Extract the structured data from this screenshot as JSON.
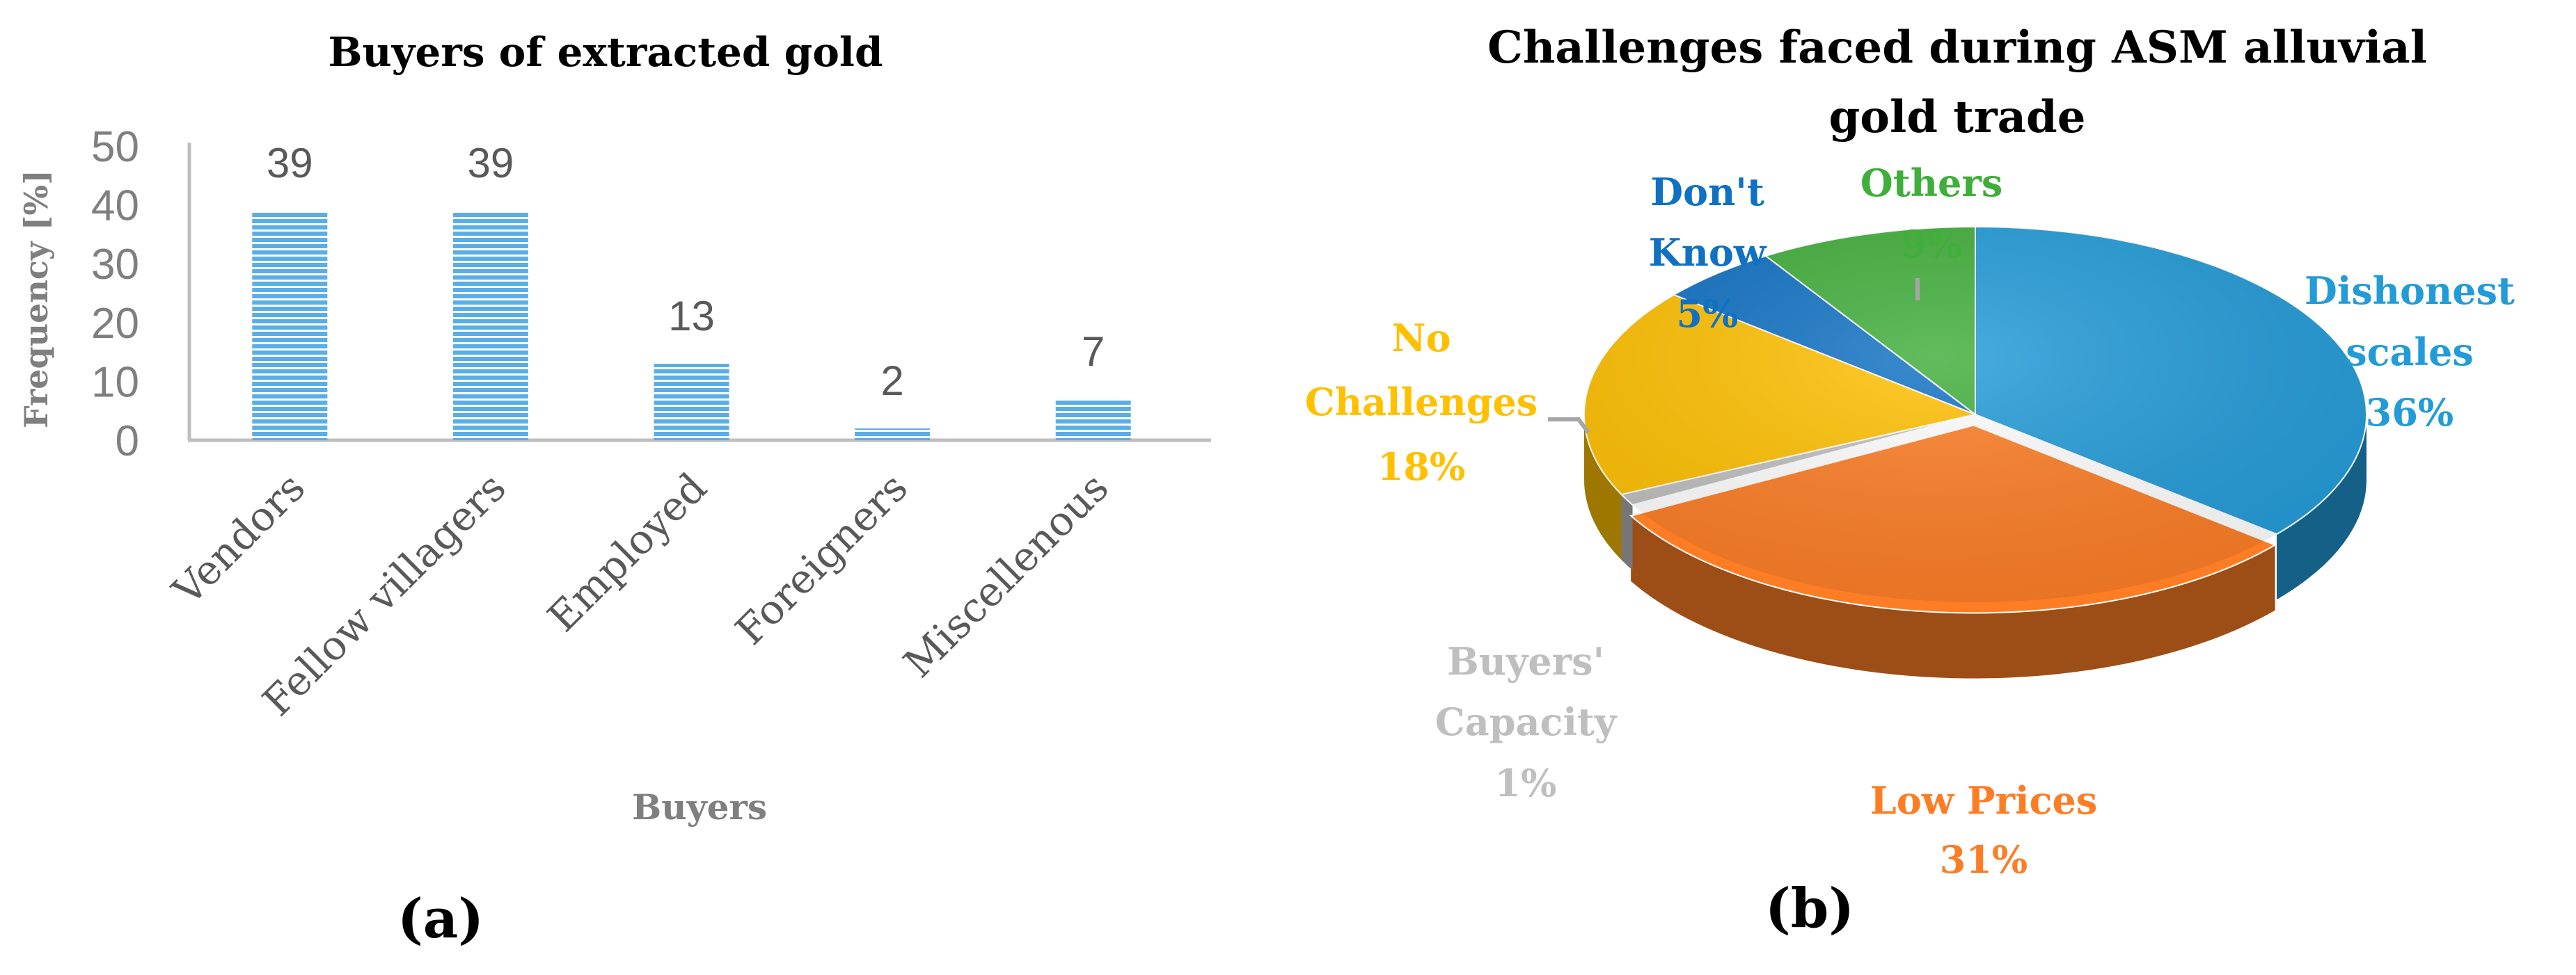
{
  "colors": {
    "bar": "#5aaee6",
    "bar_stripe": "#ffffff",
    "axis": "#bfbfbf",
    "text_gray": "#7f7f7f",
    "pie_blue": "#229bd8",
    "pie_orange": "#fd7d25",
    "pie_yellow": "#ffc000",
    "pie_darkblue": "#1071c3",
    "pie_green": "#40ae3a",
    "pie_lightgray": "#bfbfbf"
  },
  "chart_data": [
    {
      "type": "bar",
      "title": "Buyers of extracted gold",
      "xlabel": "Buyers",
      "ylabel": "Frequency [%]",
      "ylim": [
        0,
        50
      ],
      "yticks": [
        "0",
        "10",
        "20",
        "30",
        "40",
        "50"
      ],
      "categories": [
        "Vendors",
        "Fellow villagers",
        "Employed",
        "Foreigners",
        "Miscellenous"
      ],
      "values": [
        39,
        39,
        13,
        2,
        7
      ],
      "data_labels": [
        "39",
        "39",
        "13",
        "2",
        "7"
      ],
      "grid": false,
      "legend": "none",
      "panel_label": "(a)"
    },
    {
      "type": "pie",
      "title_line1": "Challenges faced during ASM alluvial",
      "title_line2": "gold trade",
      "slices": [
        {
          "label_line1": "Dishonest",
          "label_line2": "scales",
          "value": 36,
          "pct": "36%",
          "color": "#229bd8"
        },
        {
          "label_line1": "Low Prices",
          "label_line2": "",
          "value": 31,
          "pct": "31%",
          "color": "#fd7d25"
        },
        {
          "label_line1": "Buyers'",
          "label_line2": "Capacity",
          "value": 1,
          "pct": "1%",
          "color": "#bfbfbf"
        },
        {
          "label_line1": "No",
          "label_line2": "Challenges",
          "value": 18,
          "pct": "18%",
          "color": "#ffc000"
        },
        {
          "label_line1": "Don't",
          "label_line2": "Know",
          "value": 5,
          "pct": "5%",
          "color": "#1071c3"
        },
        {
          "label_line1": "Others",
          "label_line2": "",
          "value": 9,
          "pct": "9%",
          "color": "#40ae3a"
        }
      ],
      "legend": "none",
      "panel_label": "(b)"
    }
  ]
}
